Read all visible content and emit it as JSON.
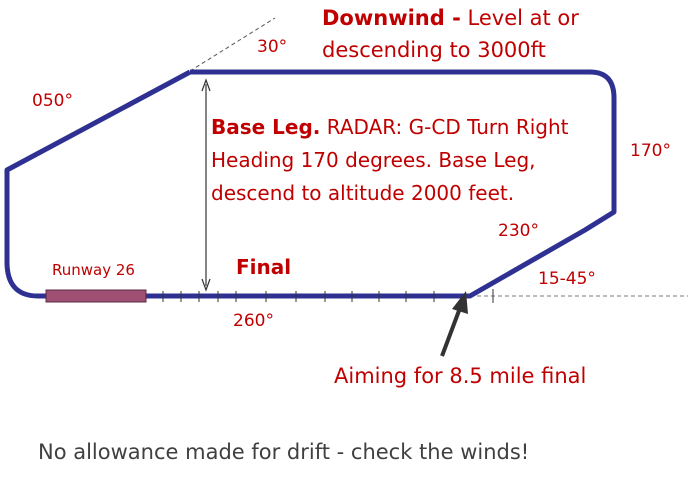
{
  "diagram": {
    "downwind": {
      "label": "Downwind -",
      "text_line1": "Level at or",
      "text_line2": "descending to 3000ft"
    },
    "base_leg": {
      "label": "Base Leg.",
      "text_line1": "RADAR: G-CD Turn Right",
      "text_line2": "Heading 170 degrees. Base Leg,",
      "text_line3": "descend to altitude 2000 feet."
    },
    "final": {
      "label": "Final"
    },
    "runway": {
      "label": "Runway 26"
    },
    "headings": {
      "upwind_angle": "30°",
      "crosswind": "050°",
      "base": "170°",
      "base_turn": "230°",
      "intercept": "15-45°",
      "final": "260°"
    },
    "aiming_note": "Aiming for 8.5 mile final",
    "footer_note": "No allowance made for drift - check the winds!",
    "colors": {
      "circuit": "#2e3192",
      "runway": "#9e4f73",
      "text_red": "#c00000",
      "text_grey": "#404040"
    }
  }
}
